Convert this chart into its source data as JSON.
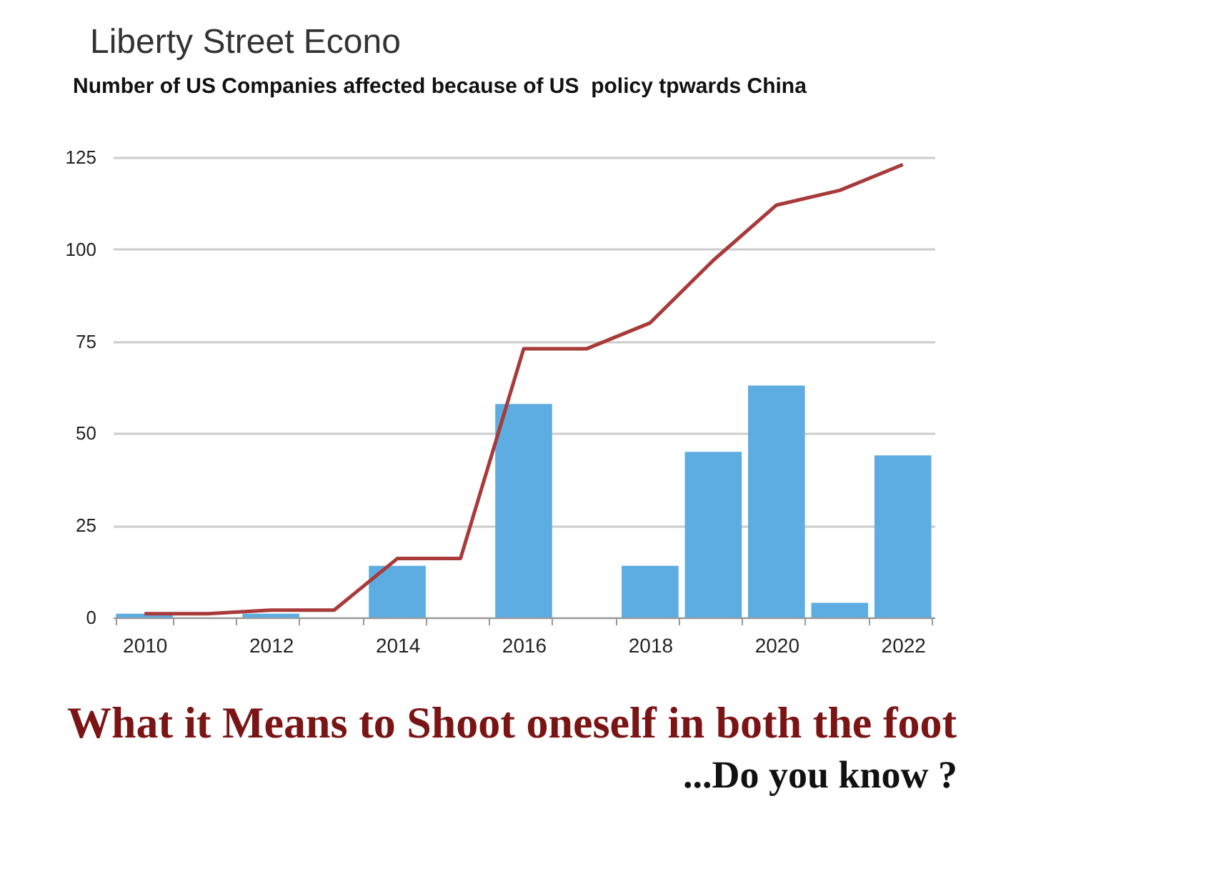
{
  "chart_data": {
    "type": "bar",
    "title": "Number of US Companies affected because of US  policy tpwards China",
    "annotations": [
      "Liberty Street Econo",
      "What it Means to Shoot oneself in both the foot",
      "...Do you know ?"
    ],
    "categories": [
      "2010",
      null,
      "2012",
      null,
      "2014",
      null,
      "2016",
      null,
      "2018",
      null,
      "2020",
      null,
      "2022"
    ],
    "series": [
      {
        "color": "#5dade2",
        "values": [
          1,
          0,
          1,
          0,
          14,
          0,
          58,
          0,
          14,
          45,
          63,
          4,
          44
        ]
      },
      {
        "type": "line",
        "color": "#a83a3a",
        "values": [
          1,
          1,
          2,
          2,
          16,
          16,
          73,
          73,
          80,
          97,
          112,
          116,
          123
        ]
      }
    ],
    "ylim": [
      0,
      125
    ],
    "yticks": [
      0,
      25,
      50,
      75,
      100,
      125
    ],
    "grid": "y"
  }
}
